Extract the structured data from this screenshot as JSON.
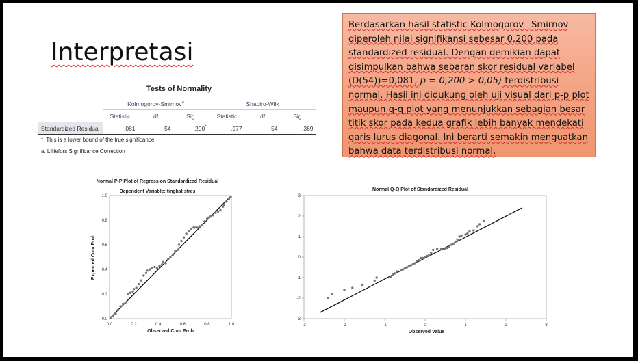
{
  "slide_title": "Interpretasi",
  "note": {
    "p1": "Berdasarkan hasil statistic Kolmogorov –Smirnov diperoleh nilai signifikansi sebesar 0,200 pada standardized residual. Dengan demikian dapat disimpulkan bahwa sebaran skor residual variabel (D(54))=0,081, ",
    "p2": "p = 0,200 > 0,05)",
    "p3": " terdistribusi normal. Hasil ini didukung oleh uji visual dari p-p plot  maupun q-q plot yang menunjukkan sebagian besar titik skor pada kedua grafik lebih banyak mendekati garis lurus diagonal. Ini berarti semakin menguatkan bahwa data terdistribusi normal."
  },
  "normality_table": {
    "title": "Tests of Normality",
    "group1": "Kolmogorov-Smirnov",
    "group1_sup": "a",
    "group2": "Shapiro-Wilk",
    "headers": [
      "Statistic",
      "df",
      "Sig.",
      "Statistic",
      "df",
      "Sig."
    ],
    "row_label": "Standardized Residual",
    "values": [
      ".081",
      "54",
      ".200",
      ".977",
      "54",
      ".369"
    ],
    "sig_sup": "*",
    "footnote1": "*. This is a lower bound of the true significance.",
    "footnote2": "a. Lilliefors Significance Correction"
  },
  "charts": {
    "pp": {
      "title": "Normal P-P Plot of Regression Standardized Residual",
      "subtitle": "Dependent Variable: tingkat stres",
      "xlabel": "Observed Cum Prob",
      "ylabel": "Expected Cum Prob",
      "ticks": [
        "0.0",
        "0.2",
        "0.4",
        "0.6",
        "0.8",
        "1.0"
      ]
    },
    "qq": {
      "title": "Normal Q-Q Plot of Standardized Residual",
      "xlabel": "Observed Value",
      "xticks": [
        "-3",
        "-2",
        "-1",
        "0",
        "1",
        "2",
        "3"
      ],
      "yticks": [
        "3",
        "2",
        "1",
        "0",
        "-1",
        "-2",
        "-3"
      ]
    }
  },
  "chart_data": [
    {
      "type": "scatter",
      "title": "Normal P-P Plot of Regression Standardized Residual",
      "subtitle": "Dependent Variable: tingkat stres",
      "xlabel": "Observed Cum Prob",
      "ylabel": "Expected Cum Prob",
      "xlim": [
        0,
        1
      ],
      "ylim": [
        0,
        1
      ],
      "reference_line": [
        [
          0,
          0
        ],
        [
          1,
          1
        ]
      ],
      "x": [
        0.01,
        0.03,
        0.05,
        0.07,
        0.09,
        0.11,
        0.13,
        0.15,
        0.17,
        0.19,
        0.2,
        0.22,
        0.24,
        0.26,
        0.28,
        0.3,
        0.31,
        0.33,
        0.35,
        0.37,
        0.39,
        0.41,
        0.43,
        0.44,
        0.46,
        0.48,
        0.5,
        0.52,
        0.54,
        0.56,
        0.57,
        0.59,
        0.61,
        0.63,
        0.65,
        0.67,
        0.69,
        0.7,
        0.72,
        0.74,
        0.76,
        0.78,
        0.8,
        0.81,
        0.83,
        0.85,
        0.87,
        0.89,
        0.91,
        0.93,
        0.94,
        0.96,
        0.98,
        0.995
      ],
      "y": [
        0.01,
        0.02,
        0.04,
        0.07,
        0.1,
        0.12,
        0.13,
        0.2,
        0.21,
        0.22,
        0.24,
        0.25,
        0.28,
        0.31,
        0.35,
        0.37,
        0.39,
        0.4,
        0.41,
        0.42,
        0.41,
        0.43,
        0.44,
        0.46,
        0.45,
        0.48,
        0.5,
        0.52,
        0.55,
        0.56,
        0.6,
        0.63,
        0.66,
        0.69,
        0.71,
        0.73,
        0.74,
        0.74,
        0.74,
        0.75,
        0.76,
        0.79,
        0.81,
        0.82,
        0.83,
        0.84,
        0.86,
        0.87,
        0.88,
        0.91,
        0.92,
        0.95,
        0.97,
        0.99
      ]
    },
    {
      "type": "scatter",
      "title": "Normal Q-Q Plot of Standardized Residual",
      "xlabel": "Observed Value",
      "xlim": [
        -3,
        3
      ],
      "ylim": [
        -3,
        3
      ],
      "reference_line": [
        [
          -2.6,
          -2.7
        ],
        [
          2.4,
          2.4
        ]
      ],
      "x": [
        -2.4,
        -2.3,
        -2.0,
        -1.8,
        -1.55,
        -1.25,
        -1.2,
        -0.85,
        -0.8,
        -0.75,
        -0.7,
        -0.6,
        -0.55,
        -0.5,
        -0.45,
        -0.4,
        -0.35,
        -0.3,
        -0.25,
        -0.2,
        -0.15,
        -0.1,
        -0.05,
        0.0,
        0.05,
        0.1,
        0.15,
        0.2,
        0.3,
        0.4,
        0.5,
        0.55,
        0.6,
        0.65,
        0.7,
        0.75,
        0.8,
        0.85,
        0.9,
        1.0,
        1.05,
        1.1,
        1.2,
        1.3,
        1.35,
        1.45,
        2.1
      ],
      "y": [
        -2.0,
        -1.8,
        -1.6,
        -1.5,
        -1.35,
        -1.15,
        -1.0,
        -0.95,
        -0.85,
        -0.8,
        -0.7,
        -0.65,
        -0.6,
        -0.55,
        -0.5,
        -0.45,
        -0.4,
        -0.35,
        -0.3,
        -0.2,
        -0.15,
        -0.05,
        -0.05,
        0.0,
        0.05,
        0.1,
        0.2,
        0.35,
        0.4,
        0.4,
        0.4,
        0.45,
        0.5,
        0.6,
        0.65,
        0.75,
        0.85,
        1.0,
        1.05,
        1.1,
        1.15,
        1.25,
        1.3,
        1.5,
        1.6,
        1.75,
        2.1
      ]
    }
  ]
}
